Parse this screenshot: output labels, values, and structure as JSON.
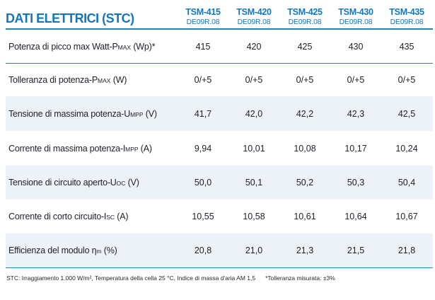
{
  "title": "DATI ELETTRICI (STC)",
  "columns": [
    {
      "model": "TSM-415",
      "code": "DE09R.08"
    },
    {
      "model": "TSM-420",
      "code": "DE09R.08"
    },
    {
      "model": "TSM-425",
      "code": "DE09R.08"
    },
    {
      "model": "TSM-430",
      "code": "DE09R.08"
    },
    {
      "model": "TSM-435",
      "code": "DE09R.08"
    }
  ],
  "rows": [
    {
      "label_main": "Potenza di picco max Watt-P",
      "label_sub": "MAX",
      "label_rest": " (Wp)*",
      "values": [
        "415",
        "420",
        "425",
        "430",
        "435"
      ]
    },
    {
      "label_main": "Tolleranza di potenza-P",
      "label_sub": "MAX",
      "label_rest": " (W)",
      "values": [
        "0/+5",
        "0/+5",
        "0/+5",
        "0/+5",
        "0/+5"
      ]
    },
    {
      "label_main": "Tensione di massima potenza-U",
      "label_sub": "MPP",
      "label_rest": " (V)",
      "values": [
        "41,7",
        "42,0",
        "42,2",
        "42,3",
        "42,5"
      ]
    },
    {
      "label_main": "Corrente di massima potenza-I",
      "label_sub": "MPP",
      "label_rest": " (A)",
      "values": [
        "9,94",
        "10,01",
        "10,08",
        "10,17",
        "10,24"
      ]
    },
    {
      "label_main": "Tensione di circuito aperto-U",
      "label_sub": "OC",
      "label_rest": " (V)",
      "values": [
        "50,0",
        "50,1",
        "50,2",
        "50,3",
        "50,4"
      ]
    },
    {
      "label_main": "Corrente di corto circuito-I",
      "label_sub": "SC",
      "label_rest": " (A)",
      "values": [
        "10,55",
        "10,58",
        "10,61",
        "10,64",
        "10,67"
      ]
    },
    {
      "label_main": "Efficienza del modulo η",
      "label_sub": "m",
      "label_rest": " (%)",
      "values": [
        "20,8",
        "21,0",
        "21,3",
        "21,5",
        "21,8"
      ]
    }
  ],
  "footnote": {
    "conditions": "STC: Irraggiamento 1.000 W/m², Temperatura della cella 25 °C, Indice di massa d'aria AM 1,5",
    "tolerance_note": "*Tolleranza misurata: ±3%"
  },
  "colors": {
    "accent_blue": "#1377c0",
    "rule_blue": "#2b80a8",
    "row_shade": "#edf2f8",
    "text": "#21212b"
  }
}
